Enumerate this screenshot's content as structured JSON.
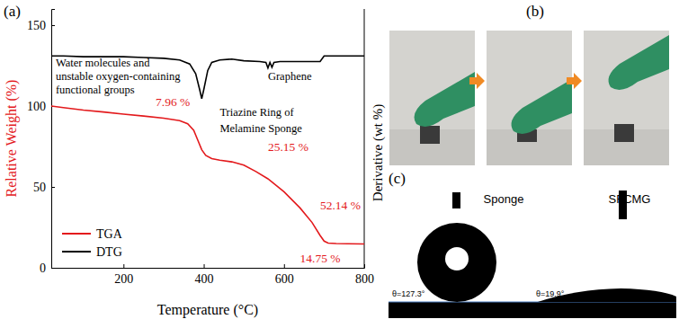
{
  "chart_data": {
    "type": "line",
    "panel_label": "(a)",
    "x_label": "Temperature (°C)",
    "y_label": "Relative Weight (%)",
    "y2_label": "Derivative (wt %)",
    "xlim": [
      20,
      800
    ],
    "xticks": [
      200,
      400,
      600,
      800
    ],
    "ylim": [
      0,
      160
    ],
    "yticks": [
      0,
      50,
      100,
      150
    ],
    "legend": "lower left",
    "series": [
      {
        "name": "TGA",
        "color": "#e3191c",
        "x": [
          20,
          50,
          100,
          150,
          200,
          250,
          300,
          340,
          360,
          375,
          385,
          395,
          405,
          420,
          440,
          470,
          500,
          530,
          560,
          600,
          640,
          670,
          690,
          700,
          710,
          730,
          760,
          800
        ],
        "values": [
          100,
          99,
          97.5,
          96.3,
          95,
          93.8,
          92.5,
          91,
          89,
          85,
          79,
          73,
          69.5,
          67.5,
          66.5,
          65.5,
          63.5,
          59.5,
          55,
          47,
          37,
          28,
          20,
          16.5,
          15.3,
          15,
          14.85,
          14.75
        ]
      },
      {
        "name": "DTG",
        "color": "#000000",
        "x": [
          20,
          50,
          100,
          150,
          200,
          250,
          300,
          340,
          365,
          380,
          390,
          395,
          400,
          410,
          420,
          440,
          470,
          500,
          540,
          555,
          560,
          565,
          570,
          575,
          590,
          620,
          660,
          690,
          700,
          710,
          760,
          800
        ],
        "values": [
          131,
          131,
          130.5,
          130.5,
          130.5,
          130,
          129.5,
          128.5,
          126,
          120,
          110,
          104.5,
          110,
          122,
          127,
          128.5,
          129,
          128,
          127.5,
          127,
          123.5,
          127,
          124,
          127,
          127.5,
          127.5,
          127.5,
          127.5,
          131,
          131,
          131,
          131
        ]
      }
    ],
    "annotations": [
      {
        "text": "Water molecules and",
        "x": 31,
        "y": 124.4
      },
      {
        "text": "unstable oxygen-containing",
        "x": 31,
        "y": 116
      },
      {
        "text": "functional groups",
        "x": 31,
        "y": 108
      },
      {
        "text": "Triazine Ring of",
        "x": 440,
        "y": 94
      },
      {
        "text": "Melamine Sponge",
        "x": 440,
        "y": 84
      },
      {
        "text": "Graphene",
        "x": 560,
        "y": 116
      }
    ],
    "mass_loss_labels": [
      {
        "text": "7.96 %",
        "x": 280,
        "y": 100
      },
      {
        "text": "25.15 %",
        "x": 560,
        "y": 72
      },
      {
        "text": "52.14 %",
        "x": 690,
        "y": 36
      },
      {
        "text": "14.75 %",
        "x": 640,
        "y": 3.5
      }
    ]
  },
  "photos": {
    "b": {
      "label": "(b)"
    },
    "c": {
      "label": "(c)",
      "samples": [
        {
          "name": "Sponge",
          "contact_angle": "θ=127.3°"
        },
        {
          "name": "SFCMG",
          "contact_angle": "θ=19.9°"
        }
      ]
    }
  }
}
